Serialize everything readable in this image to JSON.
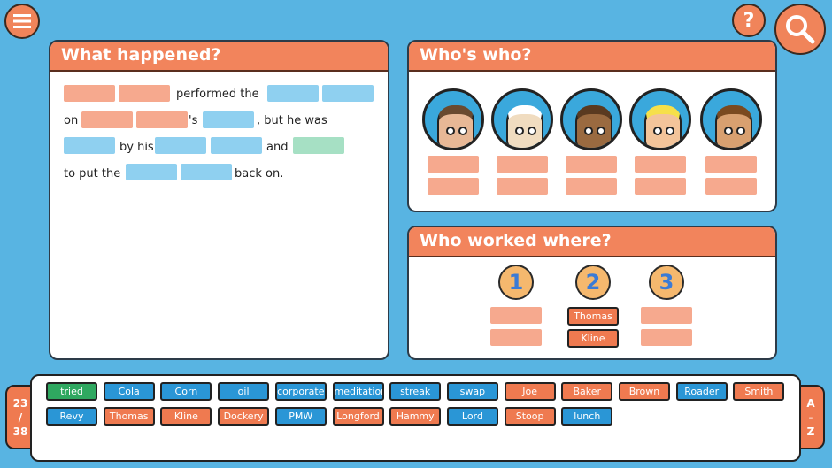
{
  "colors": {
    "background": "#58b4e2",
    "header": "#f2845c",
    "name_tile": "#ef7a50",
    "word_tile": "#2a96d6",
    "verb_tile": "#2fa860"
  },
  "toolbar": {
    "menu_icon": "hamburger-icon",
    "help_label": "?",
    "search_icon": "magnifier-icon"
  },
  "story": {
    "title": "What happened?",
    "t1": "performed the",
    "t2": "on",
    "t3": "'s",
    "t4": ", but he was",
    "t5": "by his",
    "t6": "and",
    "t7": "to put the",
    "t8": "back on."
  },
  "whos_who": {
    "title": "Who's who?",
    "characters": [
      "character-1",
      "character-2",
      "character-3",
      "character-4",
      "character-5"
    ]
  },
  "who_worked_where": {
    "title": "Who worked where?",
    "slots": [
      {
        "number": "1",
        "names": [
          "",
          ""
        ]
      },
      {
        "number": "2",
        "names": [
          "Thomas",
          "Kline"
        ]
      },
      {
        "number": "3",
        "names": [
          "",
          ""
        ]
      }
    ]
  },
  "word_bank": {
    "count": "23",
    "slash": "/",
    "total": "38",
    "sort_a": "A",
    "sort_dash": "-",
    "sort_z": "Z",
    "rows": [
      [
        {
          "w": "tried",
          "c": "green"
        },
        {
          "w": "Cola",
          "c": "blue"
        },
        {
          "w": "Corn",
          "c": "blue"
        },
        {
          "w": "oil",
          "c": "blue"
        },
        {
          "w": "corporate",
          "c": "blue"
        },
        {
          "w": "meditation",
          "c": "blue"
        },
        {
          "w": "streak",
          "c": "blue"
        },
        {
          "w": "swap",
          "c": "blue"
        },
        {
          "w": "Joe",
          "c": "orange"
        },
        {
          "w": "Baker",
          "c": "orange"
        },
        {
          "w": "Brown",
          "c": "orange"
        },
        {
          "w": "Roader",
          "c": "blue"
        },
        {
          "w": "Smith",
          "c": "orange"
        }
      ],
      [
        {
          "w": "Revy",
          "c": "blue"
        },
        {
          "w": "Thomas",
          "c": "orange"
        },
        {
          "w": "Kline",
          "c": "orange"
        },
        {
          "w": "Dockery",
          "c": "orange"
        },
        {
          "w": "PMW",
          "c": "blue"
        },
        {
          "w": "Longford",
          "c": "orange"
        },
        {
          "w": "Hammy",
          "c": "orange"
        },
        {
          "w": "Lord",
          "c": "blue"
        },
        {
          "w": "Stoop",
          "c": "orange"
        },
        {
          "w": "lunch",
          "c": "blue"
        }
      ]
    ]
  }
}
